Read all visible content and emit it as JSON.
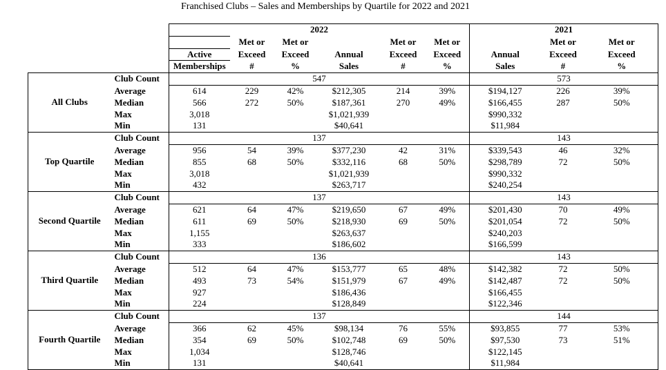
{
  "title": "Franchised Clubs – Sales and Memberships by Quartile for 2022 and 2021",
  "header": {
    "year_2022": "2022",
    "year_2021": "2021",
    "columns": [
      [
        "Active",
        "Memberships"
      ],
      [
        "Met or",
        "Exceed",
        "#"
      ],
      [
        "Met or",
        "Exceed",
        "%"
      ],
      [
        "Annual",
        "Sales"
      ],
      [
        "Met or",
        "Exceed",
        "#"
      ],
      [
        "Met or",
        "Exceed",
        "%"
      ],
      [
        "Annual",
        "Sales"
      ],
      [
        "Met or",
        "Exceed",
        "#"
      ],
      [
        "Met or",
        "Exceed",
        "%"
      ]
    ]
  },
  "stat_labels": [
    "Club Count",
    "Average",
    "Median",
    "Max",
    "Min"
  ],
  "groups": [
    {
      "name": "All Clubs",
      "club_count_2022": "547",
      "club_count_2021": "573",
      "rows": [
        [
          "614",
          "229",
          "42%",
          "$212,305",
          "214",
          "39%",
          "$194,127",
          "226",
          "39%"
        ],
        [
          "566",
          "272",
          "50%",
          "$187,361",
          "270",
          "49%",
          "$166,455",
          "287",
          "50%"
        ],
        [
          "3,018",
          "",
          "",
          "$1,021,939",
          "",
          "",
          "$990,332",
          "",
          ""
        ],
        [
          "131",
          "",
          "",
          "$40,641",
          "",
          "",
          "$11,984",
          "",
          ""
        ]
      ]
    },
    {
      "name": "Top Quartile",
      "club_count_2022": "137",
      "club_count_2021": "143",
      "rows": [
        [
          "956",
          "54",
          "39%",
          "$377,230",
          "42",
          "31%",
          "$339,543",
          "46",
          "32%"
        ],
        [
          "855",
          "68",
          "50%",
          "$332,116",
          "68",
          "50%",
          "$298,789",
          "72",
          "50%"
        ],
        [
          "3,018",
          "",
          "",
          "$1,021,939",
          "",
          "",
          "$990,332",
          "",
          ""
        ],
        [
          "432",
          "",
          "",
          "$263,717",
          "",
          "",
          "$240,254",
          "",
          ""
        ]
      ]
    },
    {
      "name": "Second Quartile",
      "club_count_2022": "137",
      "club_count_2021": "143",
      "rows": [
        [
          "621",
          "64",
          "47%",
          "$219,650",
          "67",
          "49%",
          "$201,430",
          "70",
          "49%"
        ],
        [
          "611",
          "69",
          "50%",
          "$218,930",
          "69",
          "50%",
          "$201,054",
          "72",
          "50%"
        ],
        [
          "1,155",
          "",
          "",
          "$263,637",
          "",
          "",
          "$240,203",
          "",
          ""
        ],
        [
          "333",
          "",
          "",
          "$186,602",
          "",
          "",
          "$166,599",
          "",
          ""
        ]
      ]
    },
    {
      "name": "Third Quartile",
      "club_count_2022": "136",
      "club_count_2021": "143",
      "rows": [
        [
          "512",
          "64",
          "47%",
          "$153,777",
          "65",
          "48%",
          "$142,382",
          "72",
          "50%"
        ],
        [
          "493",
          "73",
          "54%",
          "$151,979",
          "67",
          "49%",
          "$142,487",
          "72",
          "50%"
        ],
        [
          "927",
          "",
          "",
          "$186,436",
          "",
          "",
          "$166,455",
          "",
          ""
        ],
        [
          "224",
          "",
          "",
          "$128,849",
          "",
          "",
          "$122,346",
          "",
          ""
        ]
      ]
    },
    {
      "name": "Fourth Quartile",
      "club_count_2022": "137",
      "club_count_2021": "144",
      "rows": [
        [
          "366",
          "62",
          "45%",
          "$98,134",
          "76",
          "55%",
          "$93,855",
          "77",
          "53%"
        ],
        [
          "354",
          "69",
          "50%",
          "$102,748",
          "69",
          "50%",
          "$97,530",
          "73",
          "51%"
        ],
        [
          "1,034",
          "",
          "",
          "$128,746",
          "",
          "",
          "$122,145",
          "",
          ""
        ],
        [
          "131",
          "",
          "",
          "$40,641",
          "",
          "",
          "$11,984",
          "",
          ""
        ]
      ]
    }
  ]
}
